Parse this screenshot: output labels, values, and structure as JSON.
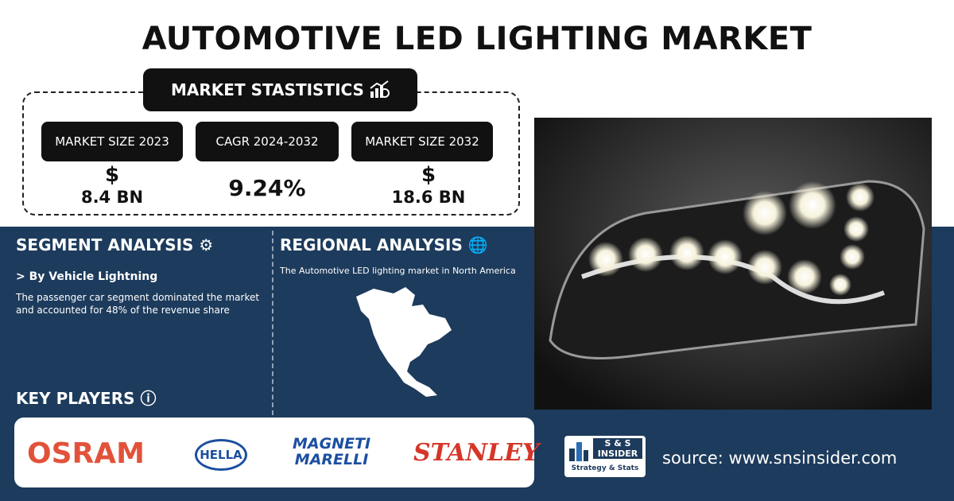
{
  "header": {
    "title": "AUTOMOTIVE LED LIGHTING MARKET"
  },
  "market_statistics": {
    "title": "MARKET STASTISTICS",
    "items": [
      {
        "label": "MARKET SIZE 2023",
        "symbol": "$",
        "value": "8.4 BN"
      },
      {
        "label": "CAGR 2024-2032",
        "value": "9.24%"
      },
      {
        "label": "MARKET SIZE 2032",
        "symbol": "$",
        "value": "18.6 BN"
      }
    ]
  },
  "segment_analysis": {
    "title": "SEGMENT ANALYSIS",
    "subheading": "> By Vehicle Lightning",
    "text": "The passenger car segment dominated the market and accounted for 48% of the revenue share"
  },
  "regional_analysis": {
    "title": "REGIONAL ANALYSIS",
    "text": "The Automotive LED lighting market in North America"
  },
  "key_players": {
    "title": "KEY PLAYERS",
    "logos": [
      {
        "text": "OSRAM"
      },
      {
        "text": "HELLA"
      },
      {
        "lines": [
          "MAGNETI",
          "MARELLI"
        ]
      },
      {
        "text": "STANLEY"
      }
    ]
  },
  "footer": {
    "logo": {
      "lines": [
        "S & S",
        "INSIDER"
      ],
      "tagline": "Strategy & Stats"
    },
    "source": "source: www.snsinsider.com"
  }
}
